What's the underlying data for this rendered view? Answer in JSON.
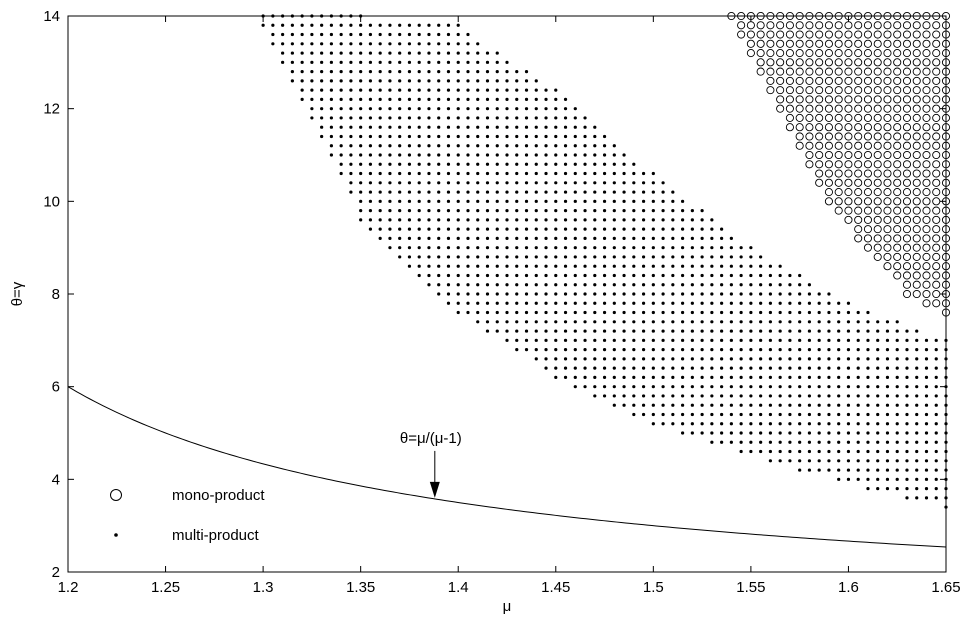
{
  "chart_data": {
    "type": "scatter",
    "title": "",
    "xlabel": "μ",
    "ylabel": "θ=γ",
    "xlim": [
      1.2,
      1.65
    ],
    "ylim": [
      2,
      14
    ],
    "xticks": [
      1.2,
      1.25,
      1.3,
      1.35,
      1.4,
      1.45,
      1.5,
      1.55,
      1.6,
      1.65
    ],
    "xtick_labels": [
      "1.2",
      "1.25",
      "1.3",
      "1.35",
      "1.4",
      "1.45",
      "1.5",
      "1.55",
      "1.6",
      "1.65"
    ],
    "yticks": [
      2,
      4,
      6,
      8,
      10,
      12,
      14
    ],
    "ytick_labels": [
      "2",
      "4",
      "6",
      "8",
      "10",
      "12",
      "14"
    ],
    "grid": false,
    "legend_position": "bottom-left",
    "series": [
      {
        "name": "mono-product",
        "marker": "open-circle",
        "color": "#000000",
        "region": {
          "x_step": 0.005,
          "y_step": 0.2,
          "y_top": 14,
          "boundary_x": [
            1.54,
            1.55,
            1.57,
            1.59,
            1.61,
            1.63,
            1.65
          ],
          "boundary_y_min": [
            13.9,
            13.1,
            11.5,
            10.0,
            8.9,
            8.0,
            7.6
          ]
        }
      },
      {
        "name": "multi-product",
        "marker": "dot",
        "color": "#000000",
        "region": {
          "x_step": 0.005,
          "y_step": 0.2,
          "boundary_x": [
            1.3,
            1.35,
            1.4,
            1.45,
            1.5,
            1.55,
            1.6,
            1.65
          ],
          "boundary_y_min": [
            13.8,
            9.6,
            7.6,
            6.2,
            5.2,
            4.5,
            3.9,
            3.4
          ],
          "boundary_y_max": [
            14.0,
            14.0,
            13.8,
            12.4,
            10.6,
            9.0,
            7.8,
            7.0
          ]
        }
      }
    ],
    "curve": {
      "expression": "θ=μ/(μ-1)",
      "x_start": 1.2,
      "x_end": 1.65
    },
    "annotation": {
      "text": "θ=μ/(μ-1)",
      "arrow_to_x": 1.388
    },
    "legend": [
      {
        "label": "mono-product",
        "marker": "open-circle"
      },
      {
        "label": "multi-product",
        "marker": "dot"
      }
    ]
  }
}
